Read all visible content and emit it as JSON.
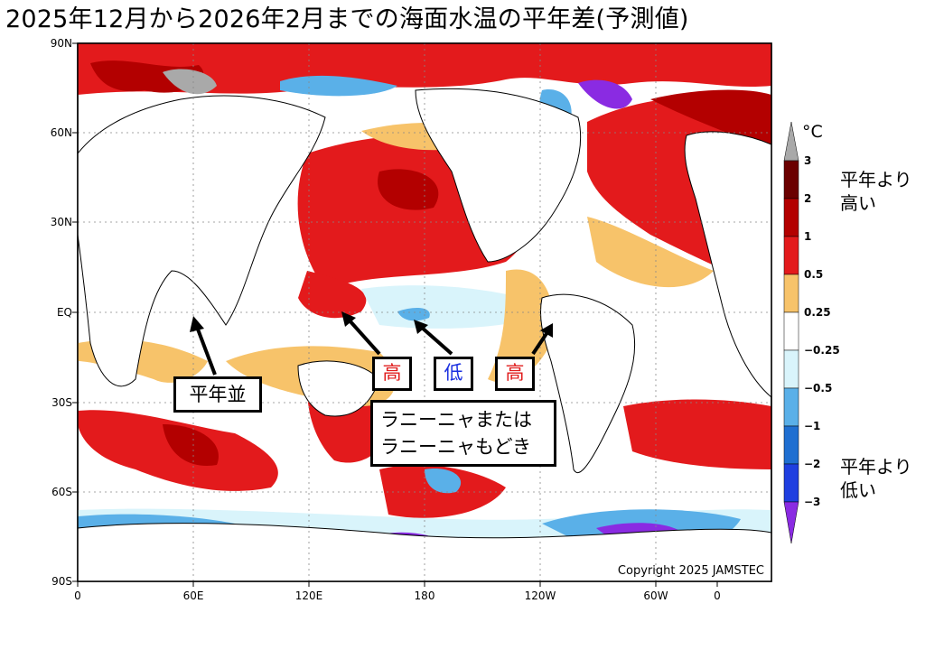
{
  "title": "2025年12月から2026年2月までの海面水温の平年差(予測値)",
  "map": {
    "lat_ticks": [
      "90N",
      "60N",
      "30N",
      "EQ",
      "30S",
      "60S",
      "90S"
    ],
    "lon_ticks": [
      "0",
      "60E",
      "120E",
      "180",
      "120W",
      "60W",
      "0"
    ],
    "copyright": "Copyright 2025 JAMSTEC"
  },
  "annotations": {
    "normal": "平年並",
    "high_left": "高",
    "low": "低",
    "high_right": "高",
    "enso_line1": "ラニーニャまたは",
    "enso_line2": "ラニーニャもどき"
  },
  "legend": {
    "unit": "°C",
    "above_label_1": "平年より",
    "above_label_2": "高い",
    "below_label_1": "平年より",
    "below_label_2": "低い",
    "ticks": [
      "3",
      "2",
      "1",
      "0.5",
      "0.25",
      "−0.25",
      "−0.5",
      "−1",
      "−2",
      "−3"
    ],
    "colors": [
      "#a9a9a9",
      "#6b0000",
      "#b30000",
      "#e31a1c",
      "#f7c36a",
      "#ffffff",
      "#d9f4fb",
      "#5ab0e8",
      "#1f6fd1",
      "#1f3fe0",
      "#8a2be2"
    ]
  }
}
